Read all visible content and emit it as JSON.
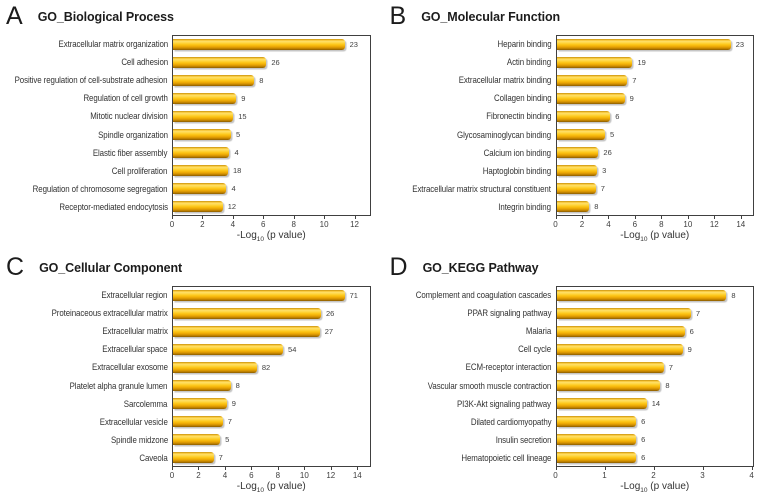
{
  "figure": {
    "background": "#ffffff"
  },
  "colors": {
    "bar_gold": "#fcc414",
    "bar_highlight": "#ffe06a",
    "bar_dark_edge": "#8a5c00",
    "plot_border": "#404040",
    "text": "#333333"
  },
  "chart_data": [
    {
      "type": "bar",
      "orientation": "horizontal",
      "panel": "A",
      "title": "GO_Biological Process",
      "xlabel": "-Log10 (p value)",
      "xlim": [
        0,
        13.05
      ],
      "xticks": [
        0,
        2,
        4,
        6,
        8,
        10,
        12
      ],
      "grid": false,
      "legend": "none",
      "categories": [
        "Extracellular matrix organization",
        "Cell adhesion",
        "Positive regulation of cell-substrate adhesion",
        "Regulation of cell growth",
        "Mitotic nuclear division",
        "Spindle organization",
        "Elastic fiber assembly",
        "Cell proliferation",
        "Regulation of chromosome segregation",
        "Receptor-mediated endocytosis"
      ],
      "values": [
        11.4,
        6.2,
        5.4,
        4.2,
        4.0,
        3.85,
        3.75,
        3.65,
        3.55,
        3.3
      ],
      "bar_labels": [
        "23",
        "26",
        "8",
        "9",
        "15",
        "5",
        "4",
        "18",
        "4",
        "12"
      ]
    },
    {
      "type": "bar",
      "orientation": "horizontal",
      "panel": "B",
      "title": "GO_Molecular Function",
      "xlabel": "-Log10 (p value)",
      "xlim": [
        0,
        15
      ],
      "xticks": [
        0,
        2,
        4,
        6,
        8,
        10,
        12,
        14
      ],
      "grid": false,
      "legend": "none",
      "categories": [
        "Heparin binding",
        "Actin binding",
        "Extracellular matrix binding",
        "Collagen binding",
        "Fibronectin binding",
        "Glycosaminoglycan binding",
        "Calcium ion binding",
        "Haptoglobin binding",
        "Extracellular matrix structural constituent",
        "Integrin binding"
      ],
      "values": [
        13.3,
        5.8,
        5.4,
        5.2,
        4.1,
        3.7,
        3.2,
        3.1,
        3.0,
        2.5
      ],
      "bar_labels": [
        "23",
        "19",
        "7",
        "9",
        "6",
        "5",
        "26",
        "3",
        "7",
        "8"
      ]
    },
    {
      "type": "bar",
      "orientation": "horizontal",
      "panel": "C",
      "title": "GO_Cellular Component",
      "xlabel": "-Log10 (p value)",
      "xlim": [
        0,
        15
      ],
      "xticks": [
        0,
        2,
        4,
        6,
        8,
        10,
        12,
        14
      ],
      "grid": false,
      "legend": "none",
      "categories": [
        "Extracellular region",
        "Proteinaceous extracellular matrix",
        "Extracellular matrix",
        "Extracellular space",
        "Extracellular exosome",
        "Platelet alpha granule lumen",
        "Sarcolemma",
        "Extracellular vesicle",
        "Spindle midzone",
        "Caveola"
      ],
      "values": [
        13.1,
        11.3,
        11.2,
        8.4,
        6.4,
        4.4,
        4.1,
        3.8,
        3.6,
        3.1
      ],
      "bar_labels": [
        "71",
        "26",
        "27",
        "54",
        "82",
        "8",
        "9",
        "7",
        "5",
        "7"
      ]
    },
    {
      "type": "bar",
      "orientation": "horizontal",
      "panel": "D",
      "title": "GO_KEGG Pathway",
      "xlabel": "-Log10 (p value)",
      "xlim": [
        0,
        4.05
      ],
      "xticks": [
        0,
        1,
        2,
        3,
        4
      ],
      "grid": false,
      "legend": "none",
      "categories": [
        "Complement and coagulation cascades",
        "PPAR signaling pathway",
        "Malaria",
        "Cell cycle",
        "ECM-receptor interaction",
        "Vascular smooth muscle contraction",
        "PI3K-Akt signaling pathway",
        "Dilated cardiomyopathy",
        "Insulin secretion",
        "Hematopoietic cell lineage"
      ],
      "values": [
        3.5,
        2.77,
        2.64,
        2.6,
        2.21,
        2.14,
        1.86,
        1.64,
        1.64,
        1.64
      ],
      "bar_labels": [
        "8",
        "7",
        "6",
        "9",
        "7",
        "8",
        "14",
        "6",
        "6",
        "6"
      ]
    }
  ]
}
